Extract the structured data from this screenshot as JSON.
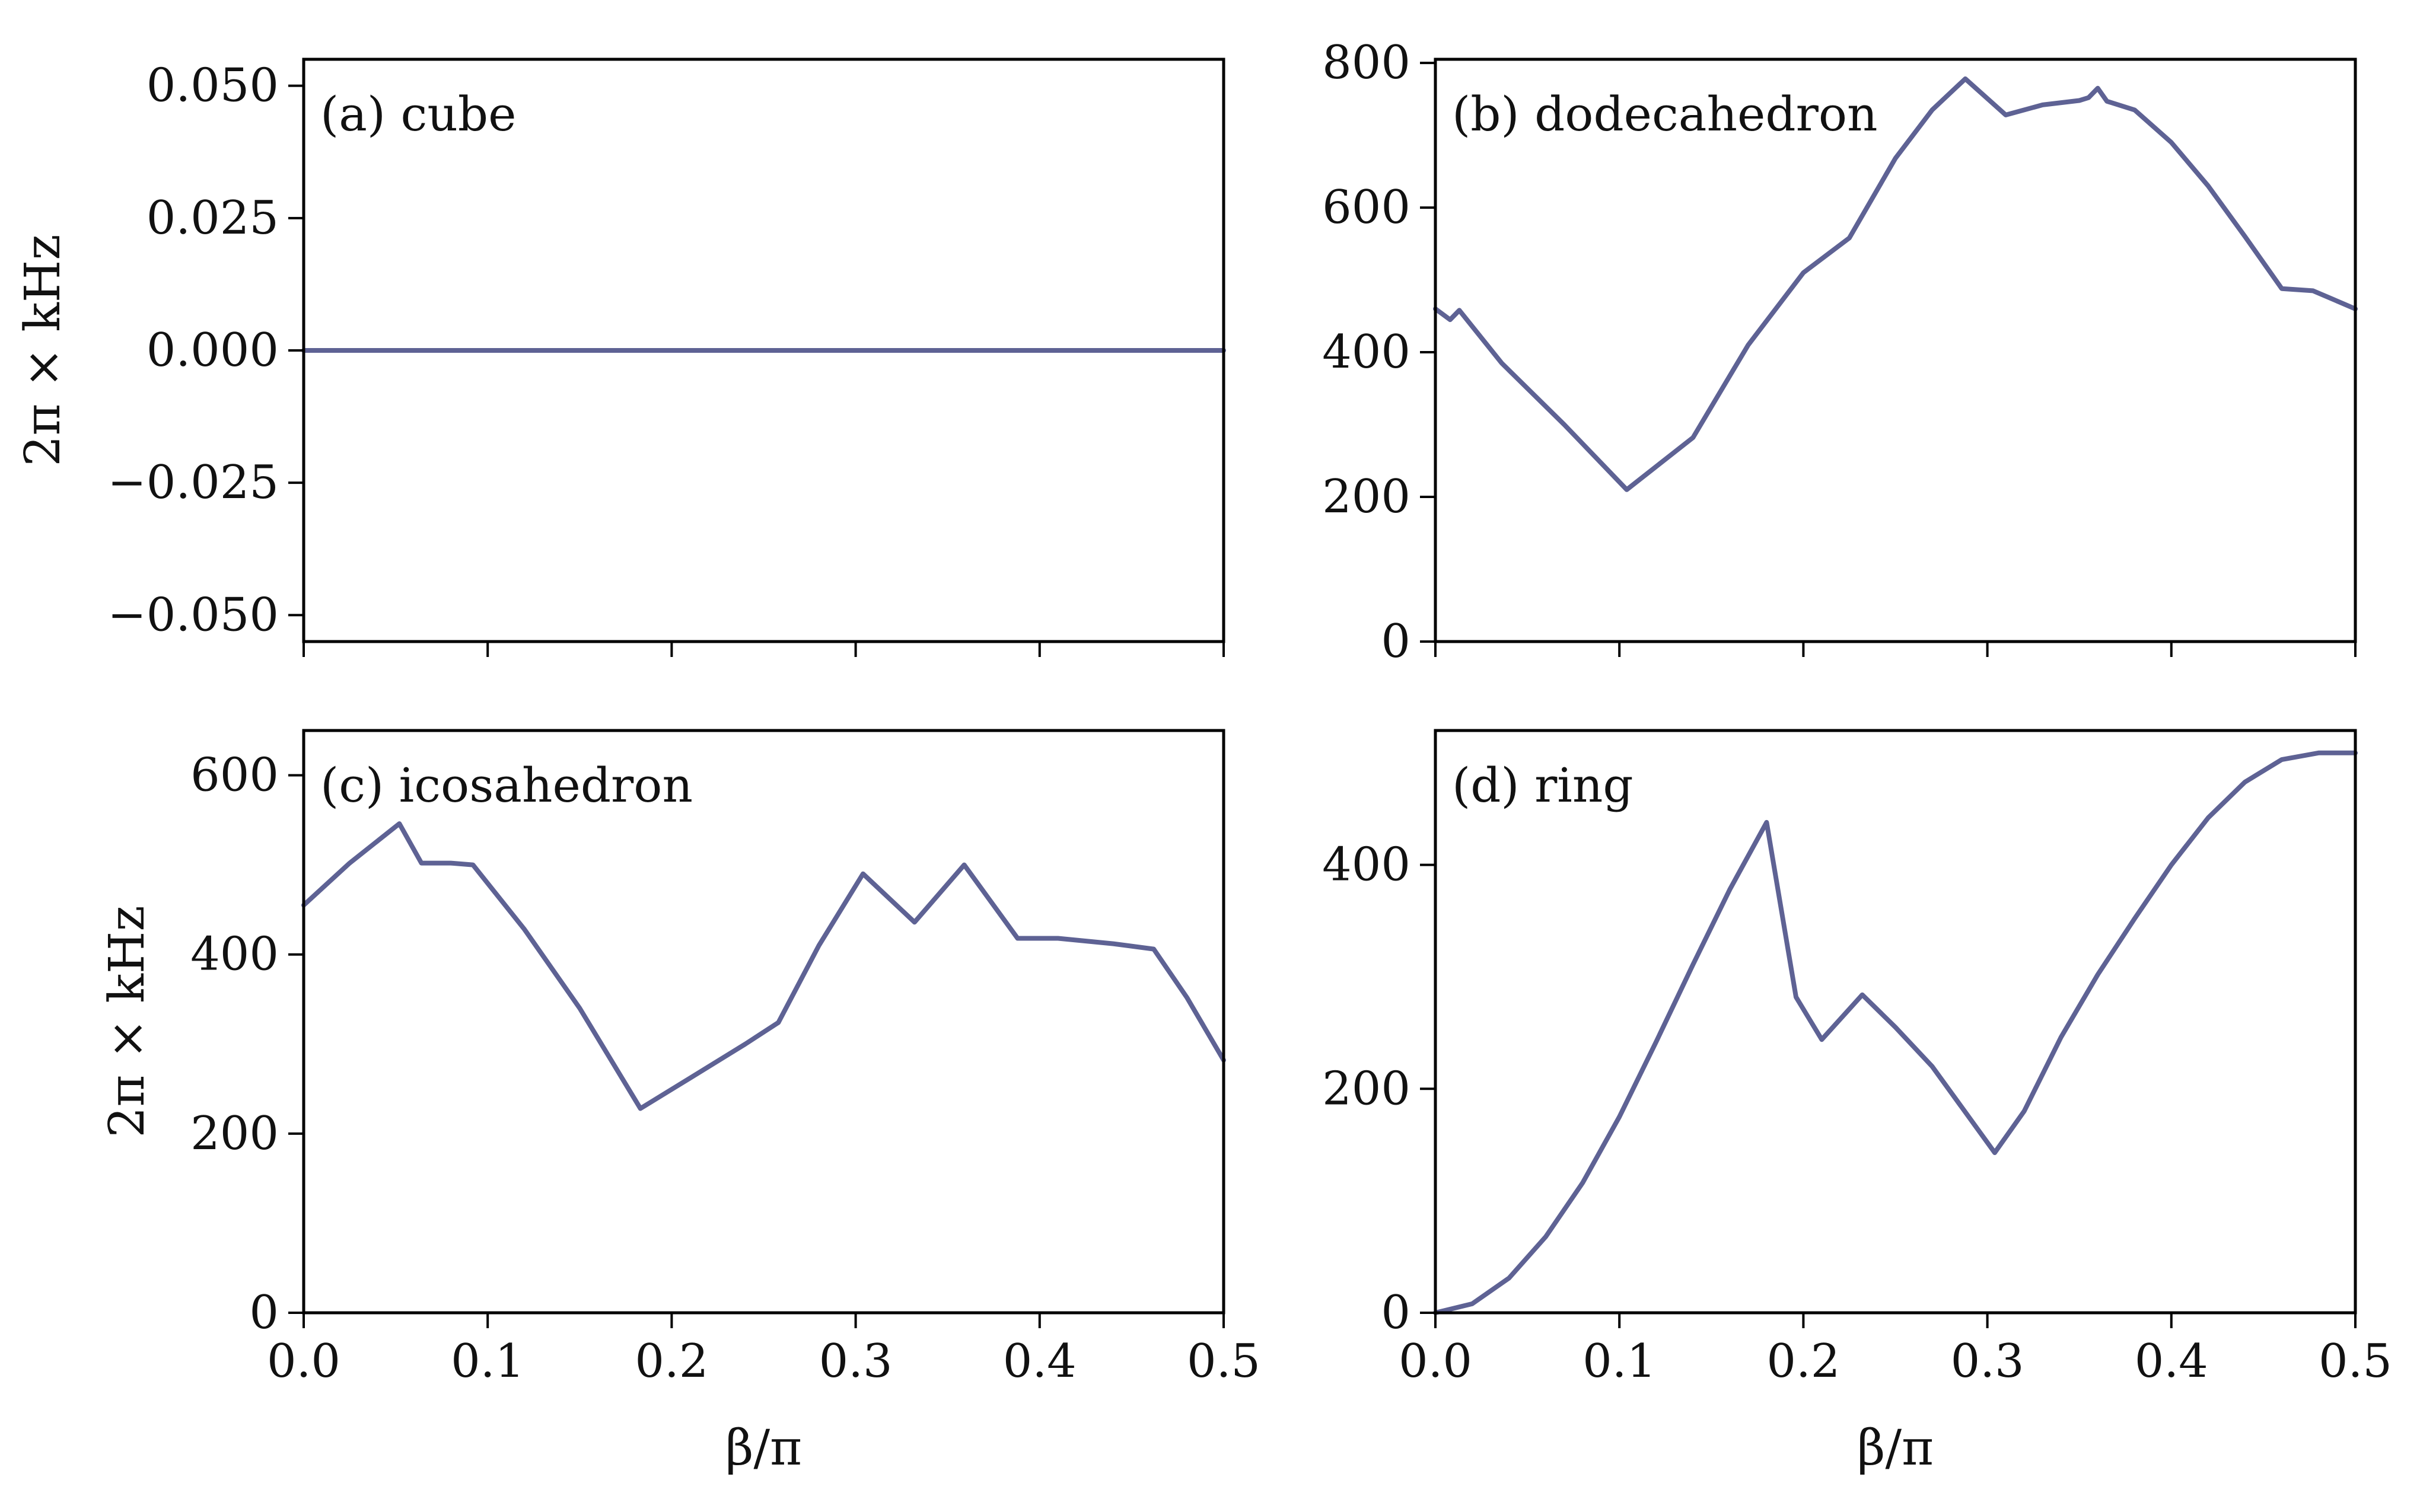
{
  "figure": {
    "line_color": "#5E6294",
    "axis_color": "#000000"
  },
  "chart_data": [
    {
      "type": "line",
      "panel_label": "(a) cube",
      "xlabel": "",
      "ylabel": "2π × kHz",
      "xlim": [
        0,
        0.5
      ],
      "ylim": [
        -0.055,
        0.055
      ],
      "xticks": [
        0,
        0.1,
        0.2,
        0.3,
        0.4,
        0.5
      ],
      "xticklabels": [
        "",
        "",
        "",
        "",
        "",
        ""
      ],
      "yticks": [
        0.05,
        0.025,
        0,
        -0.025,
        -0.05
      ],
      "yticklabels": [
        "0.050",
        "0.025",
        "0.000",
        "−0.025",
        "−0.050"
      ],
      "grid": false,
      "series": [
        {
          "x": [
            0,
            0.1,
            0.2,
            0.3,
            0.4,
            0.5
          ],
          "y": [
            0,
            0,
            0,
            0,
            0,
            0
          ]
        }
      ]
    },
    {
      "type": "line",
      "panel_label": "(b) dodecahedron",
      "xlabel": "",
      "ylabel": "",
      "xlim": [
        0,
        0.5
      ],
      "ylim": [
        0,
        805
      ],
      "xticks": [
        0,
        0.1,
        0.2,
        0.3,
        0.4,
        0.5
      ],
      "xticklabels": [
        "",
        "",
        "",
        "",
        "",
        ""
      ],
      "yticks": [
        0,
        200,
        400,
        600,
        800
      ],
      "yticklabels": [
        "0",
        "200",
        "400",
        "600",
        "800"
      ],
      "grid": false,
      "series": [
        {
          "x": [
            0,
            0.008,
            0.013,
            0.036,
            0.07,
            0.104,
            0.14,
            0.17,
            0.2,
            0.225,
            0.25,
            0.27,
            0.288,
            0.31,
            0.33,
            0.35,
            0.355,
            0.36,
            0.365,
            0.38,
            0.4,
            0.42,
            0.44,
            0.46,
            0.477,
            0.5
          ],
          "y": [
            460,
            445,
            458,
            385,
            300,
            210,
            282,
            410,
            510,
            558,
            668,
            735,
            778,
            728,
            742,
            748,
            752,
            765,
            747,
            735,
            690,
            630,
            560,
            488,
            485,
            460
          ]
        }
      ]
    },
    {
      "type": "line",
      "panel_label": "(c) icosahedron",
      "xlabel": "β/π",
      "ylabel": "2π × kHz",
      "xlim": [
        0,
        0.5
      ],
      "ylim": [
        0,
        650
      ],
      "xticks": [
        0,
        0.1,
        0.2,
        0.3,
        0.4,
        0.5
      ],
      "xticklabels": [
        "0.0",
        "0.1",
        "0.2",
        "0.3",
        "0.4",
        "0.5"
      ],
      "yticks": [
        0,
        200,
        400,
        600
      ],
      "yticklabels": [
        "0",
        "200",
        "400",
        "600"
      ],
      "grid": false,
      "series": [
        {
          "x": [
            0,
            0.025,
            0.052,
            0.064,
            0.08,
            0.092,
            0.12,
            0.15,
            0.183,
            0.21,
            0.24,
            0.258,
            0.28,
            0.304,
            0.332,
            0.359,
            0.388,
            0.41,
            0.44,
            0.462,
            0.48,
            0.5
          ],
          "y": [
            455,
            502,
            546,
            502,
            502,
            500,
            428,
            340,
            228,
            262,
            300,
            324,
            410,
            490,
            436,
            500,
            418,
            418,
            412,
            406,
            352,
            282
          ]
        }
      ]
    },
    {
      "type": "line",
      "panel_label": "(d) ring",
      "xlabel": "β/π",
      "ylabel": "",
      "xlim": [
        0,
        0.5
      ],
      "ylim": [
        0,
        520
      ],
      "xticks": [
        0,
        0.1,
        0.2,
        0.3,
        0.4,
        0.5
      ],
      "xticklabels": [
        "0.0",
        "0.1",
        "0.2",
        "0.3",
        "0.4",
        "0.5"
      ],
      "yticks": [
        0,
        200,
        400
      ],
      "yticklabels": [
        "0",
        "200",
        "400"
      ],
      "grid": false,
      "series": [
        {
          "x": [
            0,
            0.02,
            0.04,
            0.06,
            0.08,
            0.1,
            0.12,
            0.14,
            0.16,
            0.18,
            0.196,
            0.21,
            0.232,
            0.25,
            0.27,
            0.304,
            0.32,
            0.34,
            0.36,
            0.38,
            0.4,
            0.42,
            0.44,
            0.46,
            0.48,
            0.5
          ],
          "y": [
            0,
            8,
            31,
            68,
            116,
            175,
            242,
            311,
            378,
            438,
            282,
            244,
            284,
            255,
            220,
            143,
            180,
            246,
            302,
            352,
            400,
            442,
            474,
            494,
            500,
            500
          ]
        }
      ]
    }
  ]
}
